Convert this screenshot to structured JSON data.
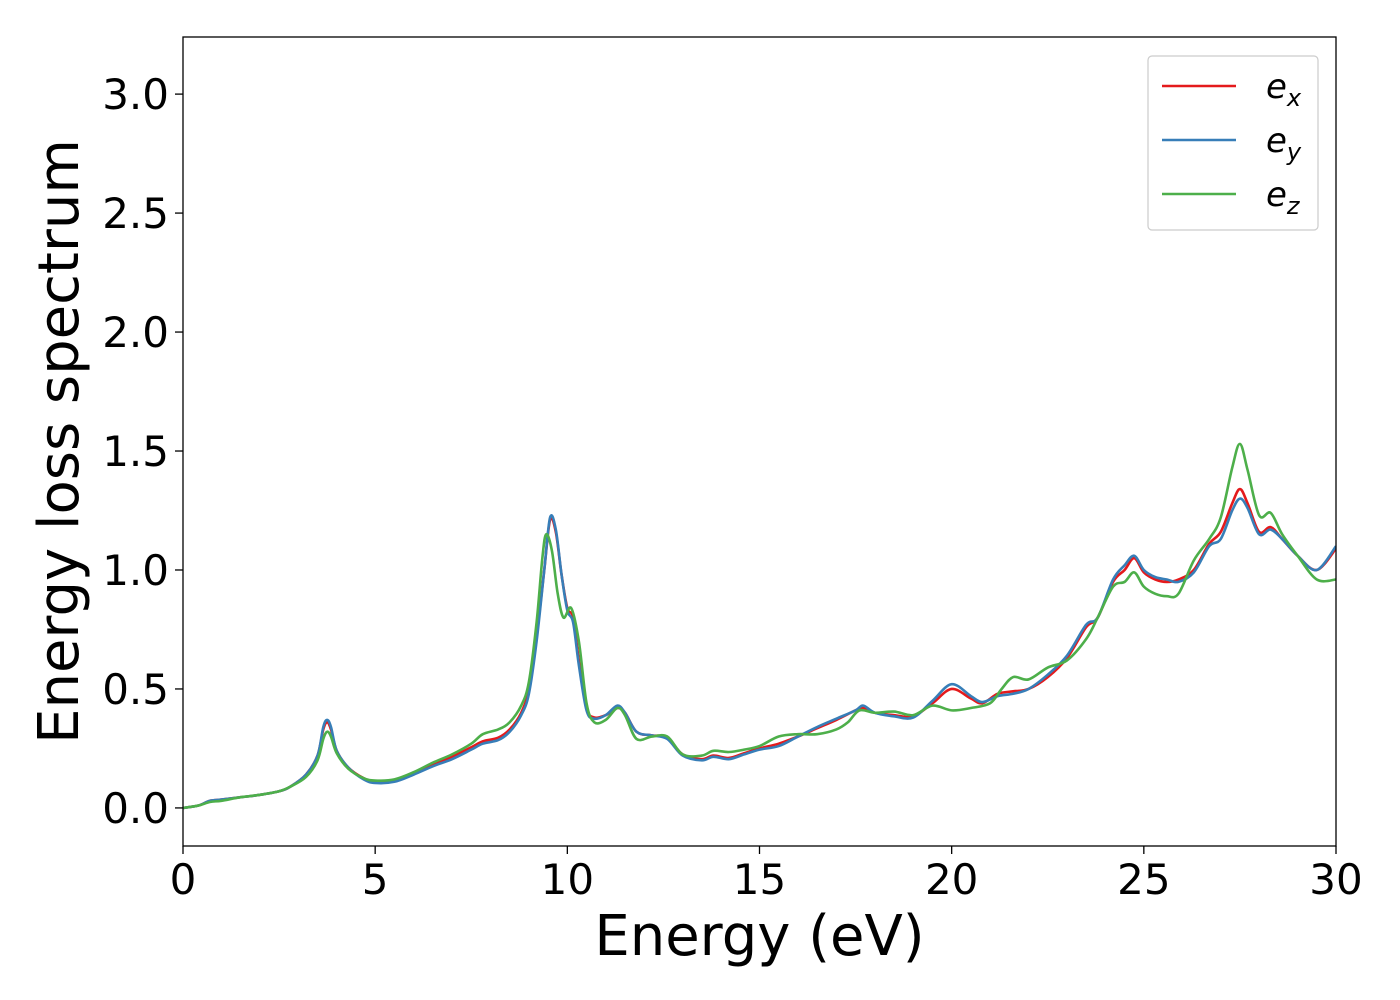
{
  "chart_data": {
    "type": "line",
    "xlabel": "Energy (eV)",
    "ylabel": "Energy loss spectrum",
    "xlim": [
      0,
      30
    ],
    "ylim": [
      -0.16,
      3.24
    ],
    "xticks": [
      0,
      5,
      10,
      15,
      20,
      25,
      30
    ],
    "xtick_labels": [
      "0",
      "5",
      "10",
      "15",
      "20",
      "25",
      "30"
    ],
    "yticks": [
      0.0,
      0.5,
      1.0,
      1.5,
      2.0,
      2.5,
      3.0
    ],
    "ytick_labels": [
      "0.0",
      "0.5",
      "1.0",
      "1.5",
      "2.0",
      "2.5",
      "3.0"
    ],
    "grid": false,
    "legend_position": "top-right",
    "series": [
      {
        "name": "e_x",
        "label_base": "e",
        "label_sub": "x",
        "color": "#e41a1c",
        "points": [
          [
            0,
            0
          ],
          [
            0.4,
            0.01
          ],
          [
            0.7,
            0.03
          ],
          [
            1.0,
            0.035
          ],
          [
            1.5,
            0.045
          ],
          [
            2.0,
            0.055
          ],
          [
            2.5,
            0.07
          ],
          [
            2.8,
            0.09
          ],
          [
            3.2,
            0.14
          ],
          [
            3.5,
            0.22
          ],
          [
            3.65,
            0.33
          ],
          [
            3.75,
            0.36
          ],
          [
            3.85,
            0.33
          ],
          [
            4.0,
            0.24
          ],
          [
            4.3,
            0.17
          ],
          [
            4.7,
            0.125
          ],
          [
            5.0,
            0.11
          ],
          [
            5.5,
            0.115
          ],
          [
            6.0,
            0.145
          ],
          [
            6.5,
            0.18
          ],
          [
            7.0,
            0.215
          ],
          [
            7.5,
            0.255
          ],
          [
            7.8,
            0.28
          ],
          [
            8.2,
            0.295
          ],
          [
            8.5,
            0.33
          ],
          [
            8.8,
            0.4
          ],
          [
            9.0,
            0.5
          ],
          [
            9.2,
            0.72
          ],
          [
            9.4,
            1.0
          ],
          [
            9.55,
            1.21
          ],
          [
            9.7,
            1.16
          ],
          [
            9.85,
            0.98
          ],
          [
            10.0,
            0.84
          ],
          [
            10.15,
            0.8
          ],
          [
            10.3,
            0.62
          ],
          [
            10.5,
            0.42
          ],
          [
            10.7,
            0.38
          ],
          [
            11.0,
            0.39
          ],
          [
            11.3,
            0.42
          ],
          [
            11.5,
            0.4
          ],
          [
            11.8,
            0.32
          ],
          [
            12.2,
            0.305
          ],
          [
            12.6,
            0.295
          ],
          [
            13.0,
            0.225
          ],
          [
            13.5,
            0.205
          ],
          [
            13.8,
            0.22
          ],
          [
            14.2,
            0.21
          ],
          [
            14.6,
            0.23
          ],
          [
            15.0,
            0.25
          ],
          [
            15.5,
            0.27
          ],
          [
            16.0,
            0.3
          ],
          [
            16.5,
            0.335
          ],
          [
            17.0,
            0.37
          ],
          [
            17.5,
            0.41
          ],
          [
            17.7,
            0.42
          ],
          [
            18.0,
            0.4
          ],
          [
            18.5,
            0.39
          ],
          [
            19.0,
            0.385
          ],
          [
            19.5,
            0.44
          ],
          [
            20.0,
            0.5
          ],
          [
            20.5,
            0.46
          ],
          [
            20.8,
            0.44
          ],
          [
            21.2,
            0.48
          ],
          [
            21.6,
            0.49
          ],
          [
            22.0,
            0.5
          ],
          [
            22.5,
            0.55
          ],
          [
            23.0,
            0.63
          ],
          [
            23.5,
            0.76
          ],
          [
            23.8,
            0.8
          ],
          [
            24.2,
            0.95
          ],
          [
            24.5,
            1.0
          ],
          [
            24.75,
            1.05
          ],
          [
            25.0,
            0.99
          ],
          [
            25.3,
            0.96
          ],
          [
            25.6,
            0.95
          ],
          [
            25.9,
            0.96
          ],
          [
            26.3,
            1.0
          ],
          [
            26.7,
            1.11
          ],
          [
            27.0,
            1.16
          ],
          [
            27.3,
            1.28
          ],
          [
            27.5,
            1.34
          ],
          [
            27.7,
            1.28
          ],
          [
            28.0,
            1.16
          ],
          [
            28.3,
            1.18
          ],
          [
            28.6,
            1.13
          ],
          [
            29.0,
            1.06
          ],
          [
            29.5,
            1.0
          ],
          [
            30.0,
            1.09
          ]
        ]
      },
      {
        "name": "e_y",
        "label_base": "e",
        "label_sub": "y",
        "color": "#377eb8",
        "points": [
          [
            0,
            0
          ],
          [
            0.4,
            0.01
          ],
          [
            0.7,
            0.03
          ],
          [
            1.0,
            0.035
          ],
          [
            1.5,
            0.045
          ],
          [
            2.0,
            0.055
          ],
          [
            2.5,
            0.07
          ],
          [
            2.8,
            0.09
          ],
          [
            3.2,
            0.14
          ],
          [
            3.5,
            0.22
          ],
          [
            3.65,
            0.34
          ],
          [
            3.75,
            0.37
          ],
          [
            3.85,
            0.34
          ],
          [
            4.0,
            0.24
          ],
          [
            4.3,
            0.17
          ],
          [
            4.7,
            0.12
          ],
          [
            5.0,
            0.105
          ],
          [
            5.5,
            0.11
          ],
          [
            6.0,
            0.14
          ],
          [
            6.5,
            0.175
          ],
          [
            7.0,
            0.205
          ],
          [
            7.5,
            0.245
          ],
          [
            7.8,
            0.27
          ],
          [
            8.2,
            0.285
          ],
          [
            8.5,
            0.32
          ],
          [
            8.8,
            0.39
          ],
          [
            9.0,
            0.48
          ],
          [
            9.2,
            0.7
          ],
          [
            9.4,
            1.0
          ],
          [
            9.55,
            1.22
          ],
          [
            9.7,
            1.17
          ],
          [
            9.85,
            0.98
          ],
          [
            10.0,
            0.83
          ],
          [
            10.15,
            0.78
          ],
          [
            10.3,
            0.6
          ],
          [
            10.5,
            0.41
          ],
          [
            10.7,
            0.375
          ],
          [
            11.0,
            0.39
          ],
          [
            11.3,
            0.43
          ],
          [
            11.5,
            0.4
          ],
          [
            11.8,
            0.32
          ],
          [
            12.2,
            0.305
          ],
          [
            12.6,
            0.29
          ],
          [
            13.0,
            0.22
          ],
          [
            13.5,
            0.2
          ],
          [
            13.8,
            0.215
          ],
          [
            14.2,
            0.205
          ],
          [
            14.6,
            0.225
          ],
          [
            15.0,
            0.245
          ],
          [
            15.5,
            0.26
          ],
          [
            16.0,
            0.3
          ],
          [
            16.5,
            0.34
          ],
          [
            17.0,
            0.375
          ],
          [
            17.5,
            0.41
          ],
          [
            17.7,
            0.43
          ],
          [
            18.0,
            0.4
          ],
          [
            18.5,
            0.385
          ],
          [
            19.0,
            0.38
          ],
          [
            19.5,
            0.45
          ],
          [
            20.0,
            0.52
          ],
          [
            20.5,
            0.47
          ],
          [
            20.8,
            0.445
          ],
          [
            21.2,
            0.47
          ],
          [
            21.6,
            0.48
          ],
          [
            22.0,
            0.5
          ],
          [
            22.5,
            0.56
          ],
          [
            23.0,
            0.64
          ],
          [
            23.5,
            0.77
          ],
          [
            23.8,
            0.8
          ],
          [
            24.2,
            0.96
          ],
          [
            24.5,
            1.02
          ],
          [
            24.75,
            1.06
          ],
          [
            25.0,
            1.0
          ],
          [
            25.3,
            0.97
          ],
          [
            25.6,
            0.96
          ],
          [
            25.9,
            0.95
          ],
          [
            26.3,
            0.99
          ],
          [
            26.7,
            1.1
          ],
          [
            27.0,
            1.13
          ],
          [
            27.3,
            1.25
          ],
          [
            27.5,
            1.3
          ],
          [
            27.7,
            1.26
          ],
          [
            28.0,
            1.15
          ],
          [
            28.3,
            1.17
          ],
          [
            28.6,
            1.13
          ],
          [
            29.0,
            1.06
          ],
          [
            29.5,
            1.0
          ],
          [
            30.0,
            1.1
          ]
        ]
      },
      {
        "name": "e_z",
        "label_base": "e",
        "label_sub": "z",
        "color": "#4daf4a",
        "points": [
          [
            0,
            0
          ],
          [
            0.4,
            0.01
          ],
          [
            0.7,
            0.025
          ],
          [
            1.0,
            0.03
          ],
          [
            1.5,
            0.045
          ],
          [
            2.0,
            0.055
          ],
          [
            2.5,
            0.07
          ],
          [
            2.8,
            0.09
          ],
          [
            3.2,
            0.13
          ],
          [
            3.5,
            0.2
          ],
          [
            3.65,
            0.29
          ],
          [
            3.75,
            0.32
          ],
          [
            3.85,
            0.3
          ],
          [
            4.0,
            0.23
          ],
          [
            4.3,
            0.165
          ],
          [
            4.7,
            0.125
          ],
          [
            5.0,
            0.115
          ],
          [
            5.5,
            0.12
          ],
          [
            6.0,
            0.15
          ],
          [
            6.5,
            0.19
          ],
          [
            7.0,
            0.225
          ],
          [
            7.5,
            0.27
          ],
          [
            7.8,
            0.31
          ],
          [
            8.2,
            0.33
          ],
          [
            8.5,
            0.36
          ],
          [
            8.8,
            0.43
          ],
          [
            9.0,
            0.53
          ],
          [
            9.2,
            0.78
          ],
          [
            9.35,
            1.05
          ],
          [
            9.45,
            1.15
          ],
          [
            9.6,
            1.08
          ],
          [
            9.75,
            0.9
          ],
          [
            9.9,
            0.8
          ],
          [
            10.1,
            0.84
          ],
          [
            10.3,
            0.7
          ],
          [
            10.5,
            0.44
          ],
          [
            10.7,
            0.36
          ],
          [
            11.0,
            0.37
          ],
          [
            11.3,
            0.42
          ],
          [
            11.5,
            0.39
          ],
          [
            11.8,
            0.29
          ],
          [
            12.2,
            0.3
          ],
          [
            12.6,
            0.3
          ],
          [
            13.0,
            0.225
          ],
          [
            13.5,
            0.22
          ],
          [
            13.8,
            0.24
          ],
          [
            14.2,
            0.235
          ],
          [
            14.6,
            0.245
          ],
          [
            15.0,
            0.26
          ],
          [
            15.5,
            0.3
          ],
          [
            16.0,
            0.31
          ],
          [
            16.5,
            0.31
          ],
          [
            17.0,
            0.33
          ],
          [
            17.3,
            0.36
          ],
          [
            17.6,
            0.41
          ],
          [
            18.0,
            0.4
          ],
          [
            18.5,
            0.405
          ],
          [
            19.0,
            0.39
          ],
          [
            19.5,
            0.43
          ],
          [
            20.0,
            0.41
          ],
          [
            20.5,
            0.42
          ],
          [
            21.0,
            0.44
          ],
          [
            21.3,
            0.5
          ],
          [
            21.6,
            0.55
          ],
          [
            22.0,
            0.54
          ],
          [
            22.5,
            0.59
          ],
          [
            23.0,
            0.62
          ],
          [
            23.5,
            0.71
          ],
          [
            23.8,
            0.8
          ],
          [
            24.2,
            0.93
          ],
          [
            24.5,
            0.95
          ],
          [
            24.75,
            0.99
          ],
          [
            25.0,
            0.93
          ],
          [
            25.3,
            0.9
          ],
          [
            25.6,
            0.89
          ],
          [
            25.9,
            0.9
          ],
          [
            26.3,
            1.04
          ],
          [
            26.7,
            1.13
          ],
          [
            27.0,
            1.22
          ],
          [
            27.3,
            1.43
          ],
          [
            27.5,
            1.53
          ],
          [
            27.7,
            1.42
          ],
          [
            28.0,
            1.23
          ],
          [
            28.3,
            1.24
          ],
          [
            28.6,
            1.15
          ],
          [
            29.0,
            1.06
          ],
          [
            29.5,
            0.96
          ],
          [
            30.0,
            0.96
          ]
        ]
      }
    ]
  }
}
